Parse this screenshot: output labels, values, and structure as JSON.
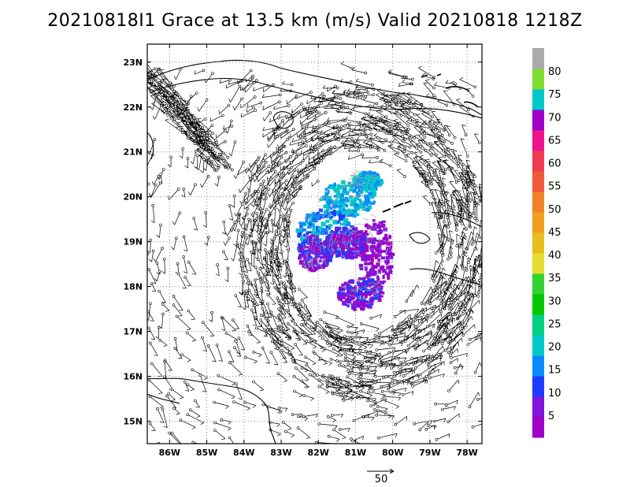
{
  "title": "20210818I1 Grace at 13.5 km (m/s) Valid 20210818 1218Z",
  "map": {
    "lon_range": [
      -86.6,
      -77.6
    ],
    "lat_range": [
      14.5,
      23.4
    ],
    "lon_ticks": [
      {
        "value": -86,
        "label": "86W"
      },
      {
        "value": -85,
        "label": "85W"
      },
      {
        "value": -84,
        "label": "84W"
      },
      {
        "value": -83,
        "label": "83W"
      },
      {
        "value": -82,
        "label": "82W"
      },
      {
        "value": -81,
        "label": "81W"
      },
      {
        "value": -80,
        "label": "80W"
      },
      {
        "value": -79,
        "label": "79W"
      },
      {
        "value": -78,
        "label": "78W"
      }
    ],
    "lat_ticks": [
      {
        "value": 23,
        "label": "23N"
      },
      {
        "value": 22,
        "label": "22N"
      },
      {
        "value": 21,
        "label": "21N"
      },
      {
        "value": 20,
        "label": "20N"
      },
      {
        "value": 19,
        "label": "19N"
      },
      {
        "value": 18,
        "label": "18N"
      },
      {
        "value": 17,
        "label": "17N"
      },
      {
        "value": 16,
        "label": "16N"
      },
      {
        "value": 15,
        "label": "15N"
      }
    ],
    "grid": "dotted",
    "storm_center": [
      -80.8,
      19.0
    ]
  },
  "colorbar": {
    "labels": [
      "5",
      "10",
      "15",
      "20",
      "25",
      "30",
      "35",
      "40",
      "45",
      "50",
      "55",
      "60",
      "65",
      "70",
      "75",
      "80"
    ],
    "colors": [
      "#a000c8",
      "#8214dc",
      "#1e3cff",
      "#0a8cff",
      "#00c8c8",
      "#00d282",
      "#00c800",
      "#32d232",
      "#e6dc32",
      "#e6be1e",
      "#f0a01e",
      "#f08228",
      "#f05a3c",
      "#f03c50",
      "#f0148c",
      "#a000c8",
      "#00c8c8",
      "#82dc32",
      "#aaaaaa"
    ]
  },
  "reference_vector": {
    "label": "50"
  }
}
